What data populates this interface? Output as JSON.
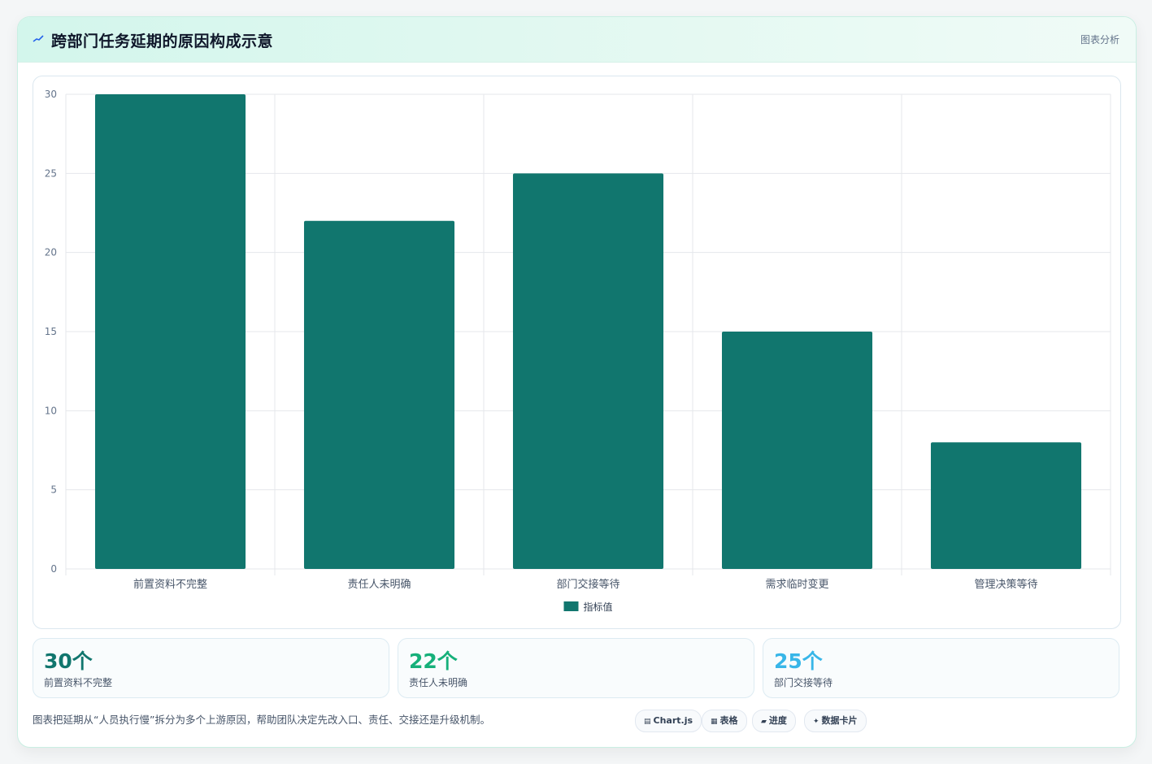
{
  "header": {
    "title": "跨部门任务延期的原因构成示意",
    "tag": "图表分析"
  },
  "chart_data": {
    "type": "bar",
    "categories": [
      "前置资料不完整",
      "责任人未明确",
      "部门交接等待",
      "需求临时变更",
      "管理决策等待"
    ],
    "series": [
      {
        "name": "指标值",
        "values": [
          30,
          22,
          25,
          15,
          8
        ]
      }
    ],
    "ylim": [
      0,
      30
    ],
    "yticks": [
      0,
      5,
      10,
      15,
      20,
      25,
      30
    ],
    "grid": true,
    "legend": "bottom",
    "bar_color": "#11766e"
  },
  "stats": [
    {
      "value": "30个",
      "label": "前置资料不完整",
      "color": "#11766e"
    },
    {
      "value": "22个",
      "label": "责任人未明确",
      "color": "#16b07a"
    },
    {
      "value": "25个",
      "label": "部门交接等待",
      "color": "#38b6e8"
    }
  ],
  "footer": {
    "text": "图表把延期从“人员执行慢”拆分为多个上游原因，帮助团队决定先改入口、责任、交接还是升级机制。",
    "pills": [
      {
        "icon": "▤",
        "label": "Chart.js"
      },
      {
        "icon": "▦",
        "label": "表格"
      },
      {
        "icon": "▰",
        "label": "进度"
      },
      {
        "icon": "✦",
        "label": "数据卡片"
      }
    ]
  }
}
